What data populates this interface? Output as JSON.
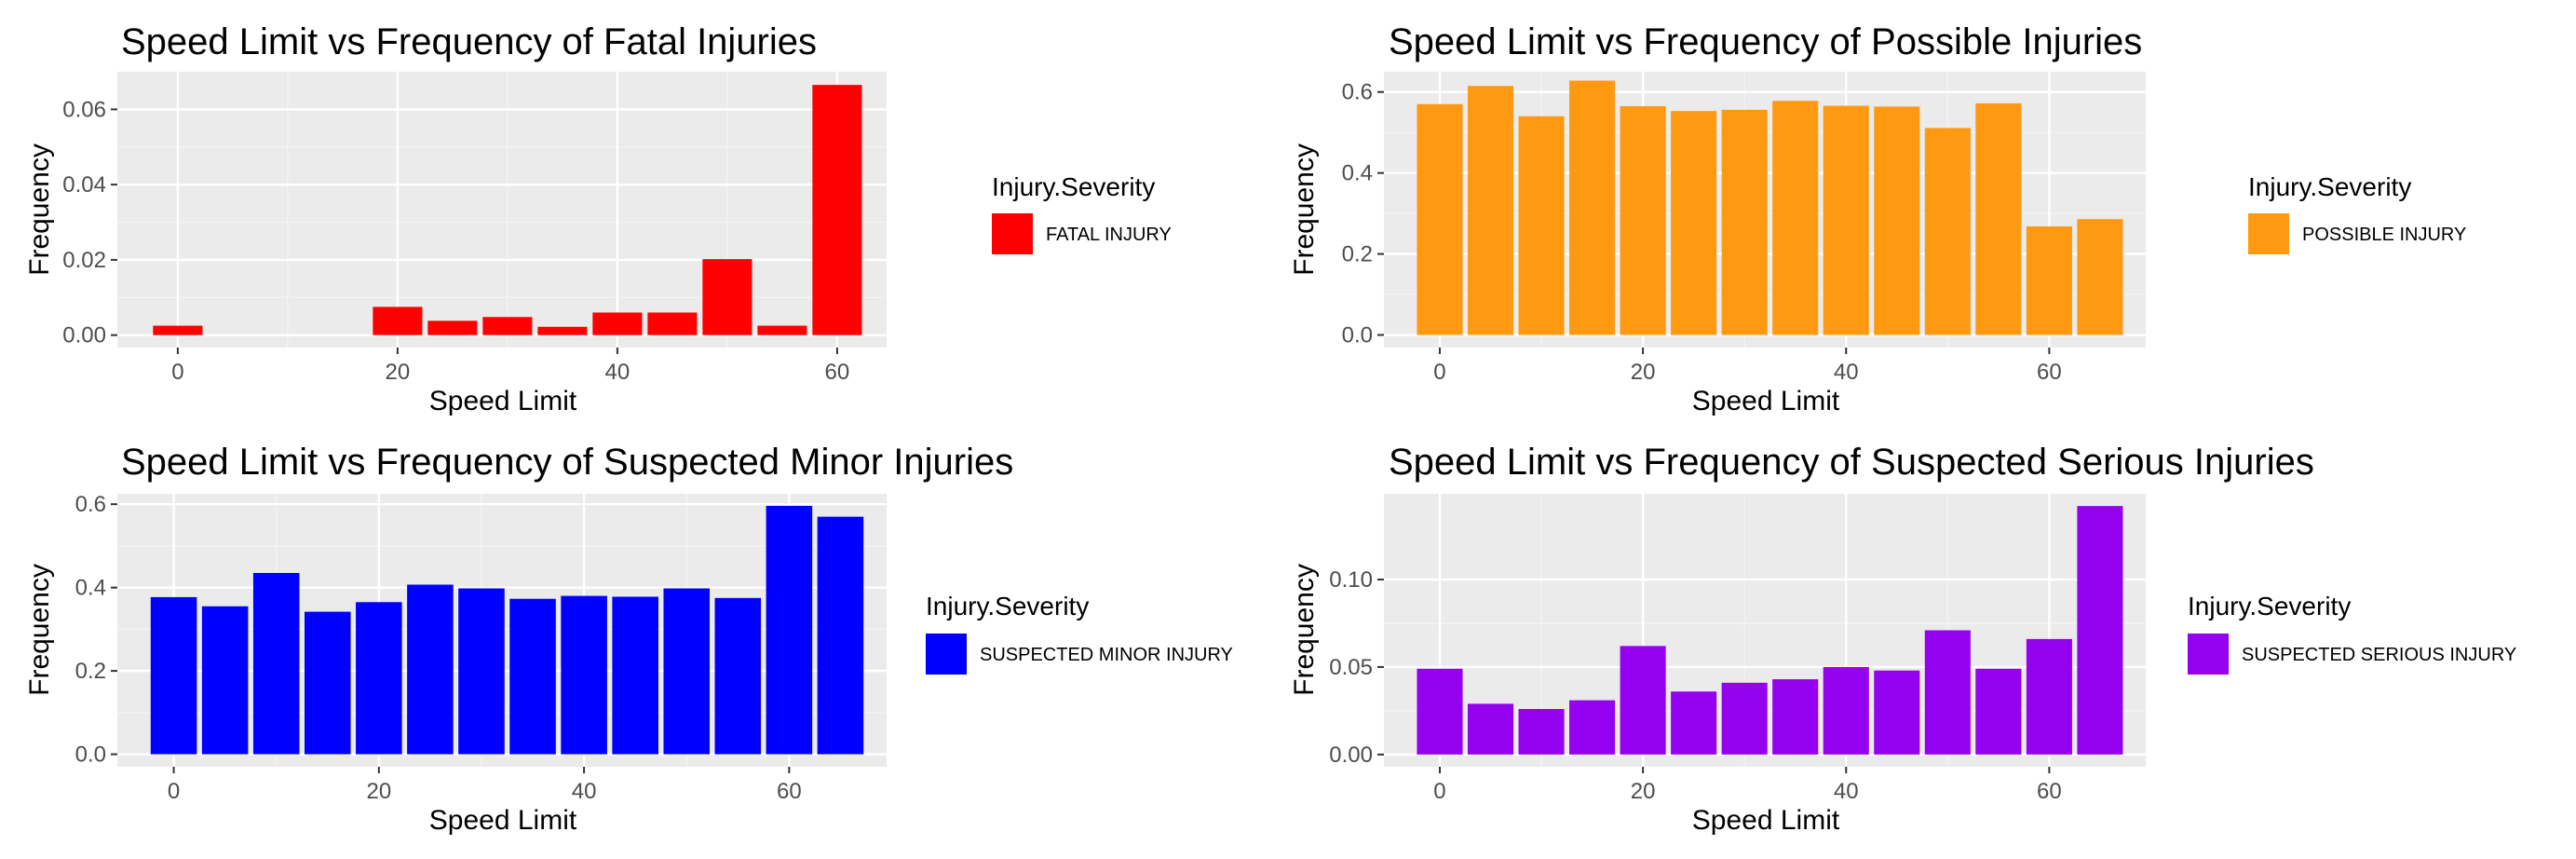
{
  "chart_data": [
    {
      "type": "bar",
      "title": "Speed Limit vs Frequency of Fatal Injuries",
      "xlabel": "Speed Limit",
      "ylabel": "Frequency",
      "x": [
        0,
        20,
        25,
        30,
        35,
        40,
        45,
        50,
        55,
        60
      ],
      "values": [
        0.0025,
        0.0075,
        0.0038,
        0.0048,
        0.0022,
        0.006,
        0.006,
        0.0202,
        0.0025,
        0.0665
      ],
      "xlim": [
        -5.5,
        64.5
      ],
      "ylim": [
        -0.0033,
        0.07
      ],
      "xticks": [
        0,
        20,
        40,
        60
      ],
      "yticks": [
        0,
        0.02,
        0.04,
        0.06
      ],
      "ytick_labels": [
        "0.00",
        "0.02",
        "0.04",
        "0.06"
      ],
      "color": "#FF0000",
      "legend": {
        "title": "Injury.Severity",
        "label": "FATAL INJURY"
      },
      "grid": true
    },
    {
      "type": "bar",
      "title": "Speed Limit vs Frequency of Possible Injuries",
      "xlabel": "Speed Limit",
      "ylabel": "Frequency",
      "x": [
        0,
        5,
        10,
        15,
        20,
        25,
        30,
        35,
        40,
        45,
        50,
        55,
        60,
        65
      ],
      "values": [
        0.57,
        0.615,
        0.54,
        0.628,
        0.565,
        0.553,
        0.556,
        0.578,
        0.566,
        0.564,
        0.511,
        0.572,
        0.268,
        0.286
      ],
      "xlim": [
        -5.5,
        69.5
      ],
      "ylim": [
        -0.031,
        0.65
      ],
      "xticks": [
        0,
        20,
        40,
        60
      ],
      "yticks": [
        0,
        0.2,
        0.4,
        0.6
      ],
      "ytick_labels": [
        "0.0",
        "0.2",
        "0.4",
        "0.6"
      ],
      "color": "#FF9912",
      "legend": {
        "title": "Injury.Severity",
        "label": "POSSIBLE INJURY"
      },
      "grid": true
    },
    {
      "type": "bar",
      "title": "Speed Limit vs Frequency of Suspected Minor Injuries",
      "xlabel": "Speed Limit",
      "ylabel": "Frequency",
      "x": [
        0,
        5,
        10,
        15,
        20,
        25,
        30,
        35,
        40,
        45,
        50,
        55,
        60,
        65
      ],
      "values": [
        0.377,
        0.355,
        0.435,
        0.342,
        0.365,
        0.407,
        0.398,
        0.373,
        0.38,
        0.378,
        0.398,
        0.375,
        0.596,
        0.57
      ],
      "xlim": [
        -5.5,
        69.5
      ],
      "ylim": [
        -0.03,
        0.625
      ],
      "xticks": [
        0,
        20,
        40,
        60
      ],
      "yticks": [
        0,
        0.2,
        0.4,
        0.6
      ],
      "ytick_labels": [
        "0.0",
        "0.2",
        "0.4",
        "0.6"
      ],
      "color": "#0000FF",
      "legend": {
        "title": "Injury.Severity",
        "label": "SUSPECTED MINOR INJURY"
      },
      "grid": true
    },
    {
      "type": "bar",
      "title": "Speed Limit vs Frequency of Suspected Serious Injuries",
      "xlabel": "Speed Limit",
      "ylabel": "Frequency",
      "x": [
        0,
        5,
        10,
        15,
        20,
        25,
        30,
        35,
        40,
        45,
        50,
        55,
        60,
        65
      ],
      "values": [
        0.049,
        0.029,
        0.026,
        0.031,
        0.062,
        0.036,
        0.041,
        0.043,
        0.05,
        0.048,
        0.071,
        0.049,
        0.066,
        0.142
      ],
      "xlim": [
        -5.5,
        69.5
      ],
      "ylim": [
        -0.007,
        0.149
      ],
      "xticks": [
        0,
        20,
        40,
        60
      ],
      "yticks": [
        0,
        0.05,
        0.1
      ],
      "ytick_labels": [
        "0.00",
        "0.05",
        "0.10"
      ],
      "color": "#9400F0",
      "legend": {
        "title": "Injury.Severity",
        "label": "SUSPECTED SERIOUS INJURY"
      },
      "grid": true
    }
  ]
}
